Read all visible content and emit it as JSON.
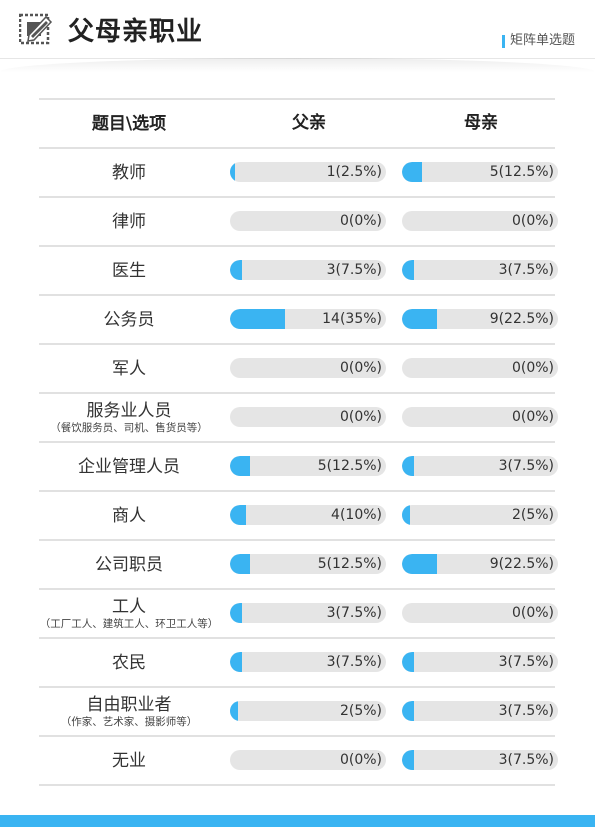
{
  "header": {
    "title": "父母亲职业",
    "question_type": "矩阵单选题"
  },
  "table": {
    "head": {
      "label": "题目\\选项",
      "father": "父亲",
      "mother": "母亲"
    },
    "rows": [
      {
        "label": "教师",
        "sub": "",
        "father": {
          "text": "1(2.5%)",
          "pct": 2.5
        },
        "mother": {
          "text": "5(12.5%)",
          "pct": 12.5
        }
      },
      {
        "label": "律师",
        "sub": "",
        "father": {
          "text": "0(0%)",
          "pct": 0
        },
        "mother": {
          "text": "0(0%)",
          "pct": 0
        }
      },
      {
        "label": "医生",
        "sub": "",
        "father": {
          "text": "3(7.5%)",
          "pct": 7.5
        },
        "mother": {
          "text": "3(7.5%)",
          "pct": 7.5
        }
      },
      {
        "label": "公务员",
        "sub": "",
        "father": {
          "text": "14(35%)",
          "pct": 35
        },
        "mother": {
          "text": "9(22.5%)",
          "pct": 22.5
        }
      },
      {
        "label": "军人",
        "sub": "",
        "father": {
          "text": "0(0%)",
          "pct": 0
        },
        "mother": {
          "text": "0(0%)",
          "pct": 0
        }
      },
      {
        "label": "服务业人员",
        "sub": "（餐饮服务员、司机、售货员等）",
        "father": {
          "text": "0(0%)",
          "pct": 0
        },
        "mother": {
          "text": "0(0%)",
          "pct": 0
        }
      },
      {
        "label": "企业管理人员",
        "sub": "",
        "father": {
          "text": "5(12.5%)",
          "pct": 12.5
        },
        "mother": {
          "text": "3(7.5%)",
          "pct": 7.5
        }
      },
      {
        "label": "商人",
        "sub": "",
        "father": {
          "text": "4(10%)",
          "pct": 10
        },
        "mother": {
          "text": "2(5%)",
          "pct": 5
        }
      },
      {
        "label": "公司职员",
        "sub": "",
        "father": {
          "text": "5(12.5%)",
          "pct": 12.5
        },
        "mother": {
          "text": "9(22.5%)",
          "pct": 22.5
        }
      },
      {
        "label": "工人",
        "sub": "（工厂工人、建筑工人、环卫工人等）",
        "father": {
          "text": "3(7.5%)",
          "pct": 7.5
        },
        "mother": {
          "text": "0(0%)",
          "pct": 0
        }
      },
      {
        "label": "农民",
        "sub": "",
        "father": {
          "text": "3(7.5%)",
          "pct": 7.5
        },
        "mother": {
          "text": "3(7.5%)",
          "pct": 7.5
        }
      },
      {
        "label": "自由职业者",
        "sub": "（作家、艺术家、摄影师等）",
        "father": {
          "text": "2(5%)",
          "pct": 5
        },
        "mother": {
          "text": "3(7.5%)",
          "pct": 7.5
        }
      },
      {
        "label": "无业",
        "sub": "",
        "father": {
          "text": "0(0%)",
          "pct": 0
        },
        "mother": {
          "text": "3(7.5%)",
          "pct": 7.5
        }
      }
    ]
  },
  "colors": {
    "accent": "#3ab4f2",
    "track": "#e5e5e5"
  },
  "icons": {
    "logo": "edit-pencil-icon"
  }
}
